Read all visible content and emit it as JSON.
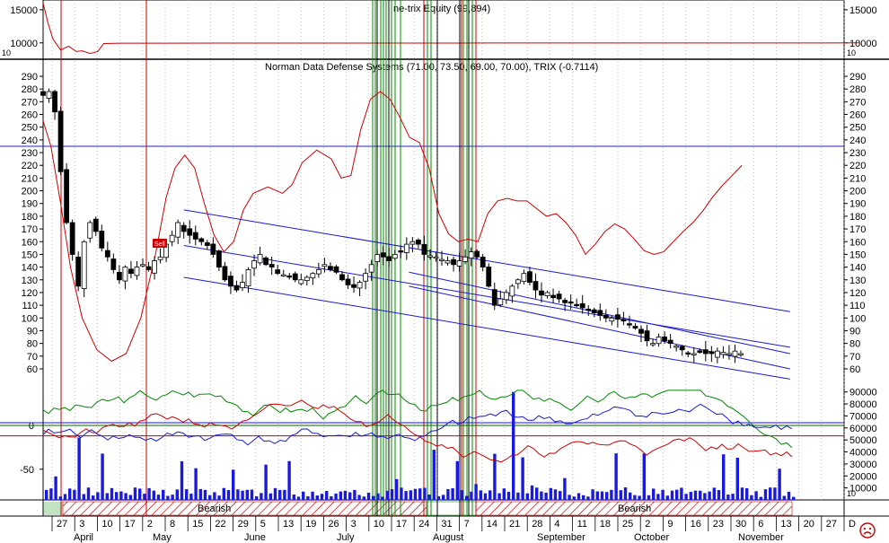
{
  "chart_data": [
    {
      "type": "line",
      "title": "ne-trix Equity (99,894)",
      "ylim": [
        7800,
        16200
      ],
      "y_ticks": [
        10000,
        15000
      ],
      "y_tick_labels": [
        "10000",
        "15000"
      ],
      "side_label": "10",
      "series": [
        {
          "color": "#cc0000",
          "x": [
            0,
            5,
            10,
            18,
            26,
            34,
            40,
            48,
            56,
            62,
            80,
            120,
            180,
            260,
            320,
            400,
            460,
            520,
            590,
            650,
            700,
            750,
            800,
            835
          ],
          "y": [
            16000,
            13000,
            10600,
            8900,
            9500,
            8700,
            8800,
            8400,
            8700,
            9900,
            9950,
            9950,
            9960,
            9960,
            9970,
            9970,
            9980,
            9980,
            9985,
            9990,
            9990,
            9992,
            9992,
            9994
          ]
        }
      ]
    },
    {
      "type": "candlestick",
      "title": "Norman Data Defense Systems (71.00, 73.50, 69.00, 70.00), TRIX (-0.7114)",
      "ylim": [
        48,
        302
      ],
      "y_ticks": [
        60,
        70,
        80,
        90,
        100,
        110,
        120,
        130,
        140,
        150,
        160,
        170,
        180,
        190,
        200,
        210,
        220,
        230,
        240,
        250,
        260,
        270,
        280,
        290
      ],
      "y_tick_labels": [
        "60",
        "70",
        "80",
        "90",
        "100",
        "110",
        "120",
        "130",
        "140",
        "150",
        "160",
        "170",
        "180",
        "190",
        "200",
        "210",
        "220",
        "230",
        "240",
        "250",
        "260",
        "270",
        "280",
        "290"
      ],
      "reference_line": 235,
      "signal_label": "Sell",
      "price": [
        [
          0,
          275
        ],
        [
          6,
          278
        ],
        [
          12,
          262
        ],
        [
          18,
          215
        ],
        [
          24,
          175
        ],
        [
          30,
          150
        ],
        [
          36,
          125
        ],
        [
          42,
          160
        ],
        [
          48,
          175
        ],
        [
          54,
          168
        ],
        [
          60,
          155
        ],
        [
          66,
          148
        ],
        [
          72,
          138
        ],
        [
          78,
          130
        ],
        [
          84,
          140
        ],
        [
          90,
          135
        ],
        [
          96,
          140
        ],
        [
          102,
          142
        ],
        [
          108,
          138
        ],
        [
          114,
          145
        ],
        [
          120,
          148
        ],
        [
          126,
          158
        ],
        [
          132,
          165
        ],
        [
          138,
          175
        ],
        [
          144,
          168
        ],
        [
          150,
          165
        ],
        [
          156,
          162
        ],
        [
          162,
          160
        ],
        [
          168,
          157
        ],
        [
          174,
          150
        ],
        [
          180,
          140
        ],
        [
          186,
          130
        ],
        [
          192,
          125
        ],
        [
          198,
          122
        ],
        [
          204,
          128
        ],
        [
          210,
          138
        ],
        [
          216,
          145
        ],
        [
          222,
          150
        ],
        [
          228,
          142
        ],
        [
          234,
          140
        ],
        [
          240,
          135
        ],
        [
          246,
          134
        ],
        [
          252,
          133
        ],
        [
          258,
          130
        ],
        [
          264,
          130
        ],
        [
          270,
          132
        ],
        [
          276,
          135
        ],
        [
          282,
          138
        ],
        [
          288,
          142
        ],
        [
          294,
          138
        ],
        [
          300,
          136
        ],
        [
          306,
          130
        ],
        [
          312,
          126
        ],
        [
          318,
          124
        ],
        [
          324,
          128
        ],
        [
          330,
          135
        ],
        [
          336,
          142
        ],
        [
          342,
          150
        ],
        [
          348,
          148
        ],
        [
          354,
          145
        ],
        [
          360,
          150
        ],
        [
          366,
          152
        ],
        [
          372,
          158
        ],
        [
          378,
          160
        ],
        [
          384,
          158
        ],
        [
          390,
          150
        ],
        [
          396,
          149
        ],
        [
          402,
          148
        ],
        [
          408,
          146
        ],
        [
          414,
          145
        ],
        [
          420,
          142
        ],
        [
          426,
          145
        ],
        [
          432,
          148
        ],
        [
          438,
          152
        ],
        [
          444,
          148
        ],
        [
          450,
          140
        ],
        [
          456,
          125
        ],
        [
          462,
          110
        ],
        [
          468,
          115
        ],
        [
          474,
          120
        ],
        [
          480,
          125
        ],
        [
          486,
          130
        ],
        [
          492,
          135
        ],
        [
          498,
          128
        ],
        [
          504,
          122
        ],
        [
          510,
          118
        ],
        [
          516,
          120
        ],
        [
          522,
          116
        ],
        [
          528,
          115
        ],
        [
          534,
          112
        ],
        [
          540,
          112
        ],
        [
          546,
          110
        ],
        [
          552,
          108
        ],
        [
          558,
          106
        ],
        [
          564,
          104
        ],
        [
          570,
          102
        ],
        [
          576,
          100
        ],
        [
          582,
          100
        ],
        [
          588,
          99
        ],
        [
          594,
          98
        ],
        [
          600,
          95
        ],
        [
          606,
          92
        ],
        [
          612,
          88
        ],
        [
          618,
          82
        ],
        [
          624,
          80
        ],
        [
          630,
          85
        ],
        [
          636,
          82
        ],
        [
          642,
          80
        ],
        [
          648,
          78
        ],
        [
          654,
          75
        ],
        [
          660,
          72
        ],
        [
          666,
          72
        ],
        [
          672,
          73
        ],
        [
          678,
          72
        ],
        [
          684,
          72
        ],
        [
          690,
          74
        ],
        [
          696,
          73
        ],
        [
          702,
          72
        ],
        [
          708,
          74
        ],
        [
          714,
          72
        ]
      ],
      "trix": [
        [
          0,
          255
        ],
        [
          8,
          235
        ],
        [
          18,
          190
        ],
        [
          28,
          140
        ],
        [
          40,
          100
        ],
        [
          55,
          75
        ],
        [
          70,
          66
        ],
        [
          85,
          72
        ],
        [
          100,
          100
        ],
        [
          115,
          150
        ],
        [
          126,
          195
        ],
        [
          135,
          218
        ],
        [
          145,
          228
        ],
        [
          155,
          218
        ],
        [
          165,
          190
        ],
        [
          175,
          165
        ],
        [
          185,
          152
        ],
        [
          195,
          160
        ],
        [
          205,
          185
        ],
        [
          215,
          198
        ],
        [
          230,
          203
        ],
        [
          245,
          198
        ],
        [
          255,
          205
        ],
        [
          265,
          222
        ],
        [
          280,
          232
        ],
        [
          295,
          225
        ],
        [
          305,
          210
        ],
        [
          315,
          212
        ],
        [
          325,
          248
        ],
        [
          335,
          272
        ],
        [
          345,
          278
        ],
        [
          355,
          272
        ],
        [
          365,
          258
        ],
        [
          375,
          242
        ],
        [
          385,
          238
        ],
        [
          395,
          218
        ],
        [
          405,
          182
        ],
        [
          415,
          166
        ],
        [
          425,
          160
        ],
        [
          435,
          162
        ],
        [
          445,
          160
        ],
        [
          455,
          182
        ],
        [
          465,
          192
        ],
        [
          475,
          194
        ],
        [
          485,
          192
        ],
        [
          495,
          192
        ],
        [
          505,
          186
        ],
        [
          515,
          180
        ],
        [
          525,
          182
        ],
        [
          535,
          175
        ],
        [
          545,
          165
        ],
        [
          555,
          150
        ],
        [
          565,
          158
        ],
        [
          575,
          168
        ],
        [
          585,
          174
        ],
        [
          595,
          170
        ],
        [
          605,
          162
        ],
        [
          615,
          153
        ],
        [
          625,
          150
        ],
        [
          635,
          152
        ],
        [
          645,
          160
        ],
        [
          655,
          168
        ],
        [
          665,
          175
        ],
        [
          675,
          184
        ],
        [
          685,
          195
        ],
        [
          695,
          204
        ],
        [
          705,
          212
        ],
        [
          715,
          220
        ]
      ],
      "channels": [
        {
          "x1": 200,
          "y1": 185,
          "x2": 830,
          "y2": 105
        },
        {
          "x1": 200,
          "y1": 157,
          "x2": 830,
          "y2": 77
        },
        {
          "x1": 200,
          "y1": 132,
          "x2": 830,
          "y2": 52
        },
        {
          "x1": 520,
          "y1": 136,
          "x2": 830,
          "y2": 72
        },
        {
          "x1": 520,
          "y1": 125,
          "x2": 830,
          "y2": 60
        }
      ]
    },
    {
      "type": "bar",
      "ylim": [
        -85,
        45
      ],
      "y_ticks_left": [
        -50,
        0
      ],
      "y_tick_labels_left": [
        "-50",
        "0"
      ],
      "y_ticks_right": [
        10000,
        20000,
        30000,
        40000,
        50000,
        60000,
        70000,
        80000,
        90000
      ],
      "y_tick_labels_right": [
        "10000",
        "20000",
        "30000",
        "40000",
        "50000",
        "60000",
        "70000",
        "80000",
        "90000"
      ],
      "side_label": "10",
      "reference_line": -12
    }
  ],
  "x_axis": {
    "days": [
      "27",
      "3",
      "10",
      "17",
      "2",
      "8",
      "15",
      "22",
      "29",
      "5",
      "13",
      "19",
      "26",
      "3",
      "10",
      "17",
      "24",
      "31",
      "7",
      "14",
      "21",
      "28",
      "4",
      "11",
      "18",
      "25",
      "2",
      "9",
      "16",
      "23",
      "30",
      "6",
      "13",
      "20",
      "27",
      "D"
    ],
    "months": [
      "April",
      "May",
      "June",
      "July",
      "August",
      "September",
      "October",
      "November"
    ],
    "bands": [
      "Bearish",
      "Bearish"
    ]
  }
}
